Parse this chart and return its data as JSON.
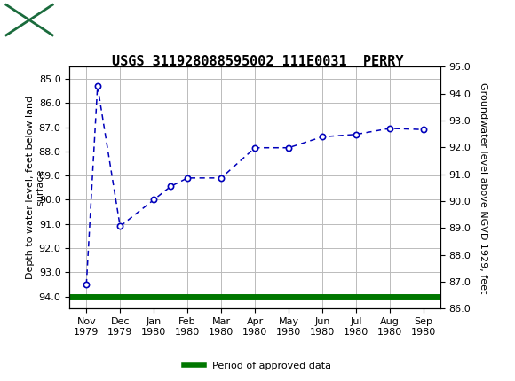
{
  "title": "USGS 311928088595002 111E0031  PERRY",
  "xlabel_months": [
    "Nov\n1979",
    "Dec\n1979",
    "Jan\n1980",
    "Feb\n1980",
    "Mar\n1980",
    "Apr\n1980",
    "May\n1980",
    "Jun\n1980",
    "Jul\n1980",
    "Aug\n1980",
    "Sep\n1980"
  ],
  "data_x": [
    0,
    0.33,
    1.0,
    2.0,
    2.5,
    3.0,
    4.0,
    5.0,
    6.0,
    7.0,
    8.0,
    9.0,
    10.0
  ],
  "data_y": [
    93.5,
    85.3,
    91.1,
    90.0,
    89.45,
    89.1,
    89.1,
    87.85,
    87.85,
    87.4,
    87.3,
    87.05,
    87.1
  ],
  "marker_x": [
    0,
    0.33,
    1.0,
    2.0,
    2.5,
    3.0,
    4.0,
    5.0,
    6.0,
    7.0,
    8.0,
    9.0,
    10.0
  ],
  "marker_y": [
    93.5,
    85.3,
    91.1,
    90.0,
    89.45,
    89.1,
    89.1,
    87.85,
    87.85,
    87.4,
    87.3,
    87.05,
    87.1
  ],
  "ylim_left": [
    94.5,
    84.5
  ],
  "ylim_right": [
    86.0,
    95.0
  ],
  "yticks_left": [
    85.0,
    86.0,
    87.0,
    88.0,
    89.0,
    90.0,
    91.0,
    92.0,
    93.0,
    94.0
  ],
  "yticks_right": [
    86.0,
    87.0,
    88.0,
    89.0,
    90.0,
    91.0,
    92.0,
    93.0,
    94.0,
    95.0
  ],
  "ylabel_left": "Depth to water level, feet below land\nsurface",
  "ylabel_right": "Groundwater level above NGVD 1929, feet",
  "line_color": "#0000bb",
  "marker_facecolor": "#ffffff",
  "marker_edgecolor": "#0000bb",
  "green_color": "#007700",
  "header_bg_color": "#1a6b3c",
  "background_color": "#ffffff",
  "grid_color": "#bbbbbb",
  "legend_label": "Period of approved data",
  "title_fontsize": 11,
  "axis_label_fontsize": 8,
  "tick_fontsize": 8
}
